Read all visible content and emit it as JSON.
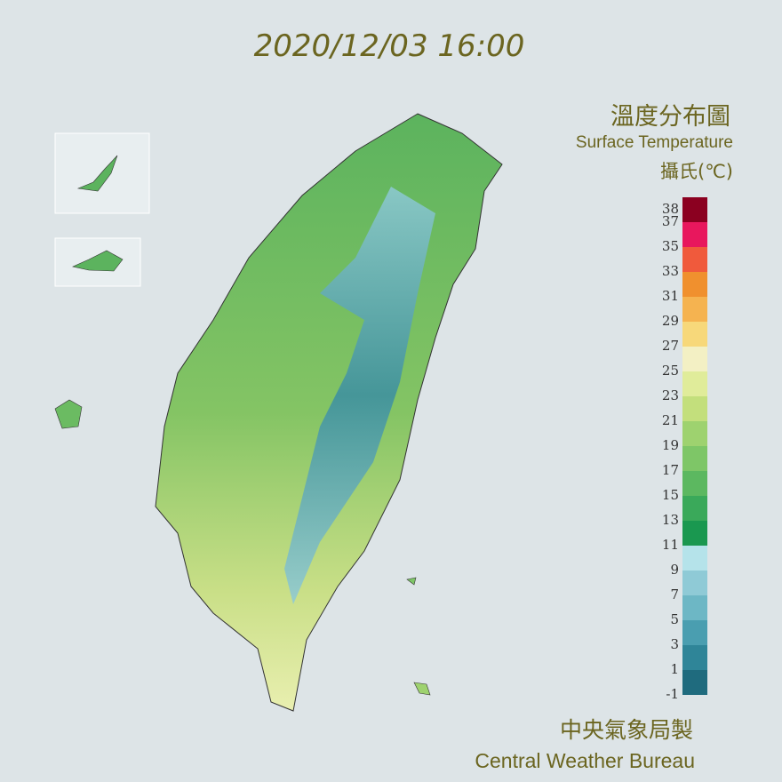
{
  "timestamp": "2020/12/03 16:00",
  "title": "溫度分布圖",
  "subtitle": "Surface Temperature",
  "legend": {
    "unit_label": "攝氏(℃)",
    "range": [
      -1,
      39
    ],
    "ticks": [
      38,
      37,
      35,
      33,
      31,
      29,
      27,
      25,
      23,
      21,
      19,
      17,
      15,
      13,
      11,
      9,
      7,
      5,
      3,
      1,
      -1
    ],
    "bins": [
      -1,
      1,
      3,
      5,
      7,
      9,
      11,
      13,
      15,
      17,
      19,
      21,
      23,
      25,
      27,
      29,
      31,
      33,
      35,
      37,
      39
    ],
    "colors": [
      "#1f6b7e",
      "#2f8598",
      "#4a9eb0",
      "#6db7c5",
      "#8fcad6",
      "#b5e3ea",
      "#1a9850",
      "#3aa95a",
      "#5cb860",
      "#7ec667",
      "#9ed26f",
      "#c3df7c",
      "#e0ec9a",
      "#f3f0c4",
      "#f7d87a",
      "#f5b350",
      "#f0902e",
      "#f05a3c",
      "#e8175d",
      "#8b0020"
    ]
  },
  "footer": {
    "org_zh": "中央氣象局製",
    "org_en": "Central Weather Bureau"
  }
}
